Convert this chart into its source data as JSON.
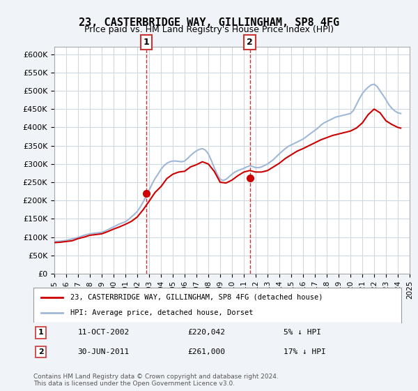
{
  "title": "23, CASTERBRIDGE WAY, GILLINGHAM, SP8 4FG",
  "subtitle": "Price paid vs. HM Land Registry's House Price Index (HPI)",
  "hpi_label": "HPI: Average price, detached house, Dorset",
  "property_label": "23, CASTERBRIDGE WAY, GILLINGHAM, SP8 4FG (detached house)",
  "sale1_date": "11-OCT-2002",
  "sale1_price": 220042,
  "sale1_label": "5% ↓ HPI",
  "sale2_date": "30-JUN-2011",
  "sale2_price": 261000,
  "sale2_label": "17% ↓ HPI",
  "sale1_year": 2002.78,
  "sale2_year": 2011.5,
  "ylim": [
    0,
    620000
  ],
  "yticks": [
    0,
    50000,
    100000,
    150000,
    200000,
    250000,
    300000,
    350000,
    400000,
    450000,
    500000,
    550000,
    600000
  ],
  "background_color": "#f0f4f8",
  "plot_bg_color": "#ffffff",
  "grid_color": "#d0d8e0",
  "hpi_color": "#a0b8d8",
  "property_color": "#cc0000",
  "sale_marker_color": "#cc0000",
  "dashed_line_color": "#cc3333",
  "footnote": "Contains HM Land Registry data © Crown copyright and database right 2024.\nThis data is licensed under the Open Government Licence v3.0.",
  "hpi_data_years": [
    1995,
    1995.25,
    1995.5,
    1995.75,
    1996,
    1996.25,
    1996.5,
    1996.75,
    1997,
    1997.25,
    1997.5,
    1997.75,
    1998,
    1998.25,
    1998.5,
    1998.75,
    1999,
    1999.25,
    1999.5,
    1999.75,
    2000,
    2000.25,
    2000.5,
    2000.75,
    2001,
    2001.25,
    2001.5,
    2001.75,
    2002,
    2002.25,
    2002.5,
    2002.75,
    2003,
    2003.25,
    2003.5,
    2003.75,
    2004,
    2004.25,
    2004.5,
    2004.75,
    2005,
    2005.25,
    2005.5,
    2005.75,
    2006,
    2006.25,
    2006.5,
    2006.75,
    2007,
    2007.25,
    2007.5,
    2007.75,
    2008,
    2008.25,
    2008.5,
    2008.75,
    2009,
    2009.25,
    2009.5,
    2009.75,
    2010,
    2010.25,
    2010.5,
    2010.75,
    2011,
    2011.25,
    2011.5,
    2011.75,
    2012,
    2012.25,
    2012.5,
    2012.75,
    2013,
    2013.25,
    2013.5,
    2013.75,
    2014,
    2014.25,
    2014.5,
    2014.75,
    2015,
    2015.25,
    2015.5,
    2015.75,
    2016,
    2016.25,
    2016.5,
    2016.75,
    2017,
    2017.25,
    2017.5,
    2017.75,
    2018,
    2018.25,
    2018.5,
    2018.75,
    2019,
    2019.25,
    2019.5,
    2019.75,
    2020,
    2020.25,
    2020.5,
    2020.75,
    2021,
    2021.25,
    2021.5,
    2021.75,
    2022,
    2022.25,
    2022.5,
    2022.75,
    2023,
    2023.25,
    2023.5,
    2023.75,
    2024,
    2024.25
  ],
  "hpi_data_values": [
    88000,
    88500,
    89000,
    90000,
    91000,
    93000,
    95000,
    97000,
    99000,
    102000,
    105000,
    107000,
    109000,
    110000,
    111000,
    112000,
    113000,
    116000,
    120000,
    124000,
    128000,
    132000,
    136000,
    139000,
    142000,
    148000,
    155000,
    162000,
    170000,
    182000,
    196000,
    212000,
    228000,
    245000,
    260000,
    272000,
    285000,
    295000,
    302000,
    306000,
    308000,
    308000,
    307000,
    306000,
    308000,
    315000,
    323000,
    330000,
    336000,
    340000,
    342000,
    338000,
    328000,
    310000,
    290000,
    272000,
    258000,
    255000,
    258000,
    265000,
    272000,
    278000,
    282000,
    285000,
    288000,
    292000,
    295000,
    293000,
    290000,
    290000,
    292000,
    296000,
    300000,
    306000,
    312000,
    320000,
    328000,
    335000,
    342000,
    348000,
    352000,
    356000,
    360000,
    364000,
    368000,
    374000,
    380000,
    386000,
    392000,
    398000,
    406000,
    412000,
    416000,
    420000,
    424000,
    428000,
    430000,
    432000,
    434000,
    436000,
    438000,
    446000,
    462000,
    478000,
    492000,
    502000,
    510000,
    516000,
    518000,
    512000,
    500000,
    488000,
    476000,
    462000,
    452000,
    445000,
    440000,
    438000
  ],
  "prop_data_years": [
    1995,
    1995.5,
    1996,
    1996.5,
    1997,
    1997.5,
    1998,
    1998.5,
    1999,
    1999.5,
    2000,
    2000.5,
    2001,
    2001.5,
    2002,
    2002.5,
    2003,
    2003.5,
    2004,
    2004.5,
    2005,
    2005.5,
    2006,
    2006.5,
    2007,
    2007.5,
    2008,
    2008.5,
    2009,
    2009.5,
    2010,
    2010.5,
    2011,
    2011.5,
    2012,
    2012.5,
    2013,
    2013.5,
    2014,
    2014.5,
    2015,
    2015.5,
    2016,
    2016.5,
    2017,
    2017.5,
    2018,
    2018.5,
    2019,
    2019.5,
    2020,
    2020.5,
    2021,
    2021.5,
    2022,
    2022.5,
    2023,
    2023.5,
    2024,
    2024.25
  ],
  "prop_data_values": [
    85000,
    86000,
    88000,
    90000,
    96000,
    100000,
    105000,
    107000,
    109000,
    115000,
    122000,
    128000,
    135000,
    143000,
    155000,
    175000,
    198000,
    222000,
    238000,
    260000,
    272000,
    278000,
    280000,
    292000,
    298000,
    306000,
    300000,
    280000,
    250000,
    248000,
    256000,
    268000,
    278000,
    282000,
    278000,
    278000,
    282000,
    292000,
    302000,
    315000,
    325000,
    335000,
    342000,
    350000,
    358000,
    366000,
    372000,
    378000,
    382000,
    386000,
    390000,
    398000,
    412000,
    435000,
    450000,
    440000,
    418000,
    408000,
    400000,
    398000
  ]
}
